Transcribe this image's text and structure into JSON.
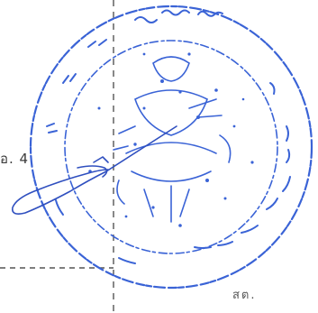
{
  "document": {
    "text_fragments": {
      "left_fragment": "อ. 4",
      "bottom_fragment": "สต."
    }
  },
  "seal": {
    "ink_color": "#3a63d6"
  },
  "signature": {
    "ink_color": "#2f4fbf"
  },
  "guides": {
    "dash_color": "#555555"
  }
}
